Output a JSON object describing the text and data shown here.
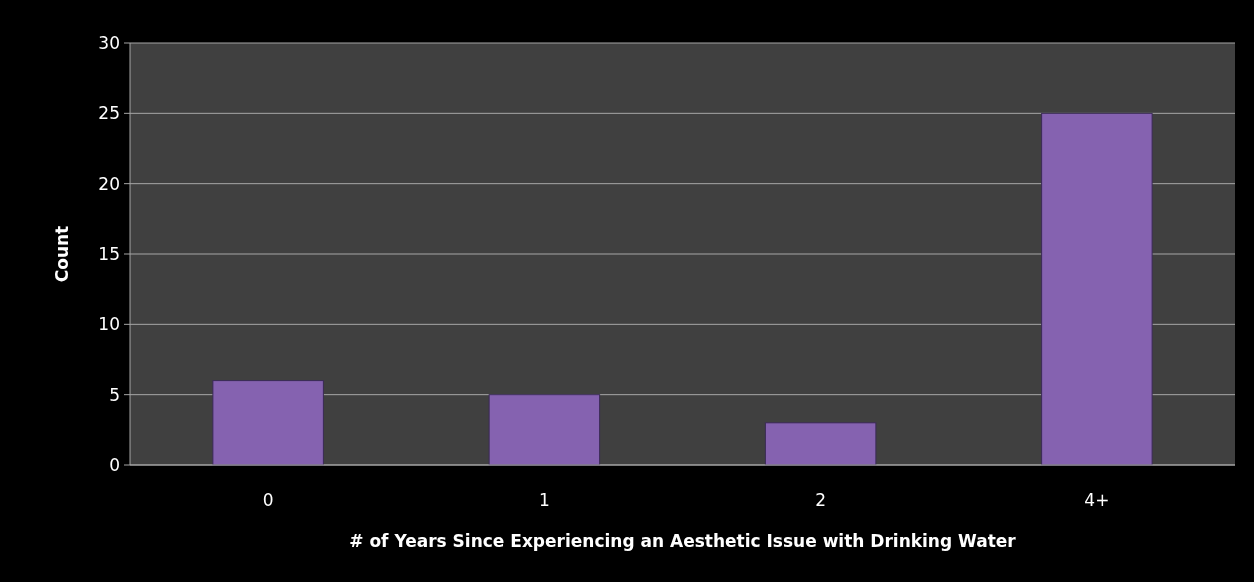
{
  "chart_data": {
    "type": "bar",
    "xlabel": "# of Years Since Experiencing an Aesthetic Issue with Drinking Water",
    "ylabel": "Count",
    "categories": [
      "0",
      "1",
      "2",
      "4+"
    ],
    "values": [
      6,
      5,
      3,
      25
    ],
    "color": "#8562b0",
    "ylim": [
      0,
      30
    ],
    "yticks": [
      0,
      5,
      10,
      15,
      20,
      25,
      30
    ],
    "grid": "y"
  }
}
